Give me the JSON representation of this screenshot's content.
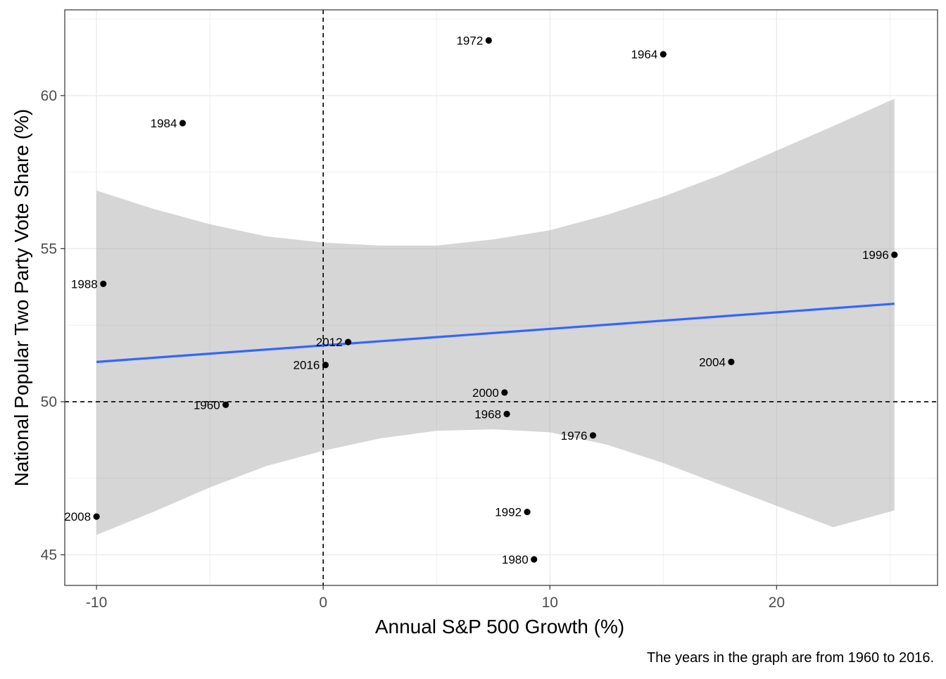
{
  "chart_data": {
    "type": "scatter",
    "xlabel": "Annual S&P 500 Growth (%)",
    "ylabel": "National Popular Two Party Vote Share (%)",
    "caption": "The years in the graph are from 1960 to 2016.",
    "xlim": [
      -11.4,
      27.1
    ],
    "ylim": [
      44.0,
      62.8
    ],
    "x_ticks": [
      -10,
      0,
      10,
      20
    ],
    "y_ticks": [
      45,
      50,
      55,
      60
    ],
    "x_minor": [
      -5,
      5,
      15,
      25
    ],
    "y_minor": [
      47.5,
      52.5,
      57.5,
      62.5
    ],
    "reference_lines": {
      "x": 0,
      "y": 50
    },
    "grid": true,
    "points": [
      {
        "label": "1960",
        "x": -4.3,
        "y": 49.9
      },
      {
        "label": "1964",
        "x": 15.0,
        "y": 61.35
      },
      {
        "label": "1968",
        "x": 8.1,
        "y": 49.6
      },
      {
        "label": "1972",
        "x": 7.3,
        "y": 61.8
      },
      {
        "label": "1976",
        "x": 11.9,
        "y": 48.9
      },
      {
        "label": "1980",
        "x": 9.3,
        "y": 44.85
      },
      {
        "label": "1984",
        "x": -6.2,
        "y": 59.1
      },
      {
        "label": "1988",
        "x": -9.7,
        "y": 53.85
      },
      {
        "label": "1992",
        "x": 9.0,
        "y": 46.4
      },
      {
        "label": "1996",
        "x": 25.2,
        "y": 54.8
      },
      {
        "label": "2000",
        "x": 8.0,
        "y": 50.3
      },
      {
        "label": "2004",
        "x": 18.0,
        "y": 51.3
      },
      {
        "label": "2008",
        "x": -10.0,
        "y": 46.25
      },
      {
        "label": "2012",
        "x": 1.1,
        "y": 51.95
      },
      {
        "label": "2016",
        "x": 0.1,
        "y": 51.2
      }
    ],
    "fit_line": {
      "x": [
        -10.0,
        25.2
      ],
      "y": [
        51.3,
        53.2
      ]
    },
    "confidence_band": {
      "x": [
        -10.0,
        -7.5,
        -5.0,
        -2.5,
        0.0,
        2.5,
        5.0,
        7.5,
        10.0,
        12.5,
        15.0,
        17.5,
        20.0,
        22.5,
        25.2
      ],
      "upper": [
        56.9,
        56.3,
        55.8,
        55.4,
        55.2,
        55.1,
        55.1,
        55.3,
        55.6,
        56.1,
        56.7,
        57.4,
        58.2,
        59.0,
        59.9
      ],
      "lower": [
        45.65,
        46.4,
        47.2,
        47.9,
        48.4,
        48.8,
        49.05,
        49.1,
        49.0,
        48.6,
        48.0,
        47.3,
        46.6,
        45.9,
        46.45
      ]
    },
    "colors": {
      "fit_line": "#3366FF",
      "band": "#999999",
      "points": "#000000",
      "grid": "#EBEBEB",
      "panel_border": "#333333"
    }
  }
}
